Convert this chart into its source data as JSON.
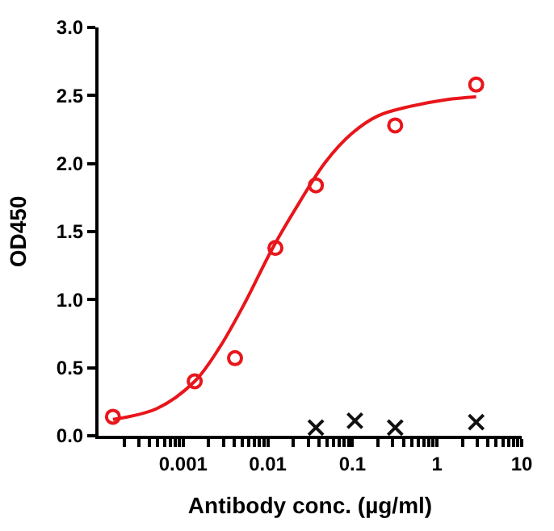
{
  "chart_data": {
    "type": "scatter",
    "xlabel": "Antibody conc. (µg/ml)",
    "ylabel": "OD450",
    "log": "x",
    "xlim": [
      0.0001,
      10
    ],
    "ylim": [
      0,
      3
    ],
    "xticks": [
      {
        "value": 0.0002,
        "label": null
      },
      {
        "value": 0.0003,
        "label": null
      },
      {
        "value": 0.0004,
        "label": null
      },
      {
        "value": 0.0005,
        "label": null
      },
      {
        "value": 0.0006,
        "label": null
      },
      {
        "value": 0.0007,
        "label": null
      },
      {
        "value": 0.0008,
        "label": null
      },
      {
        "value": 0.0009,
        "label": null
      },
      0.001,
      {
        "value": 0.002,
        "label": null
      },
      {
        "value": 0.003,
        "label": null
      },
      {
        "value": 0.004,
        "label": null
      },
      {
        "value": 0.005,
        "label": null
      },
      {
        "value": 0.006,
        "label": null
      },
      {
        "value": 0.007,
        "label": null
      },
      {
        "value": 0.008,
        "label": null
      },
      {
        "value": 0.009,
        "label": null
      },
      0.01,
      {
        "value": 0.02,
        "label": null
      },
      {
        "value": 0.03,
        "label": null
      },
      {
        "value": 0.04,
        "label": null
      },
      {
        "value": 0.05,
        "label": null
      },
      {
        "value": 0.06,
        "label": null
      },
      {
        "value": 0.07,
        "label": null
      },
      {
        "value": 0.08,
        "label": null
      },
      {
        "value": 0.09,
        "label": null
      },
      0.1,
      {
        "value": 0.2,
        "label": null
      },
      {
        "value": 0.3,
        "label": null
      },
      {
        "value": 0.4,
        "label": null
      },
      {
        "value": 0.5,
        "label": null
      },
      {
        "value": 0.6,
        "label": null
      },
      {
        "value": 0.7,
        "label": null
      },
      {
        "value": 0.8,
        "label": null
      },
      {
        "value": 0.9,
        "label": null
      },
      1,
      {
        "value": 2,
        "label": null
      },
      {
        "value": 3,
        "label": null
      },
      {
        "value": 4,
        "label": null
      },
      {
        "value": 5,
        "label": null
      },
      {
        "value": 6,
        "label": null
      },
      {
        "value": 7,
        "label": null
      },
      {
        "value": 8,
        "label": null
      },
      {
        "value": 9,
        "label": null
      },
      10
    ],
    "yticks": [
      {
        "value": 0,
        "label": "0.0"
      },
      0.5,
      {
        "value": 1,
        "label": "1.0"
      },
      1.5,
      {
        "value": 2,
        "label": "2.0"
      },
      2.5,
      {
        "value": 3,
        "label": "3.0"
      }
    ],
    "series": [
      {
        "marker": "circle",
        "color": "#e8161b",
        "x": [
          0.000148,
          0.00137,
          0.0041,
          0.0123,
          0.037,
          0.32,
          2.9
        ],
        "values": [
          0.14,
          0.4,
          0.57,
          1.38,
          1.84,
          2.28,
          2.58
        ]
      },
      {
        "type": "line",
        "marker": "none",
        "color": "#e8161b",
        "x": [
          0.000148,
          0.00049,
          0.00137,
          0.0027,
          0.0055,
          0.0112,
          0.0234,
          0.0479,
          0.098,
          0.2,
          0.48,
          1.29,
          2.9
        ],
        "values": [
          0.12,
          0.2,
          0.4,
          0.65,
          0.99,
          1.37,
          1.71,
          2.01,
          2.22,
          2.35,
          2.42,
          2.47,
          2.49
        ]
      },
      {
        "marker": "cross",
        "color": "#111111",
        "x": [
          0.037,
          0.107,
          0.32,
          2.9
        ],
        "values": [
          0.06,
          0.11,
          0.06,
          0.1
        ]
      }
    ]
  }
}
